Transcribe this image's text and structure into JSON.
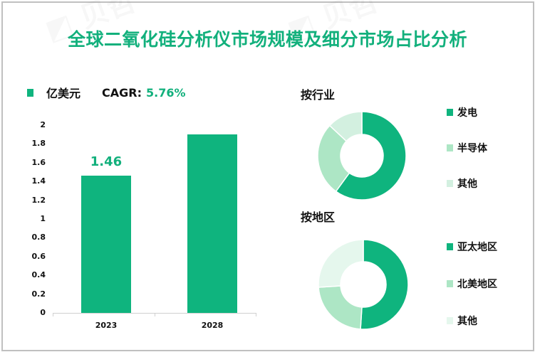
{
  "title": "全球二氧化硅分析仪市场规模及细分市场占比分析",
  "bar_section": {
    "unit_label": "亿美元",
    "cagr_label": "CAGR:",
    "cagr_value": "5.76%",
    "y_ticks": [
      "2",
      "1.8",
      "1.6",
      "1.4",
      "1.2",
      "1",
      "0.8",
      "0.6",
      "0.4",
      "0.2",
      "0"
    ],
    "bars": [
      {
        "year": "2023",
        "value": 1.46,
        "label": "1.46"
      },
      {
        "year": "2028",
        "value": 1.9,
        "label": ""
      }
    ]
  },
  "industry_section": {
    "title": "按行业",
    "items": [
      {
        "label": "发电",
        "share": 60,
        "color": "#0fb47e"
      },
      {
        "label": "半导体",
        "share": 27,
        "color": "#ade6c5"
      },
      {
        "label": "其他",
        "share": 13,
        "color": "#d3f0e0"
      }
    ]
  },
  "region_section": {
    "title": "按地区",
    "items": [
      {
        "label": "亚太地区",
        "share": 51,
        "color": "#0fb47e"
      },
      {
        "label": "北美地区",
        "share": 23,
        "color": "#ade6c5"
      },
      {
        "label": "其他",
        "share": 26,
        "color": "#e5f7ed"
      }
    ]
  },
  "colors": {
    "accent": "#12b07c",
    "bar": "#0fb47e"
  },
  "chart_data": [
    {
      "type": "bar",
      "title": "全球二氧化硅分析仪市场规模",
      "categories": [
        "2023",
        "2028"
      ],
      "values": [
        1.46,
        1.9
      ],
      "data_labels": [
        "1.46",
        ""
      ],
      "ylabel": "亿美元",
      "xlabel": "",
      "ylim": [
        0,
        2
      ],
      "yticks": [
        0,
        0.2,
        0.4,
        0.6,
        0.8,
        1,
        1.2,
        1.4,
        1.6,
        1.8,
        2
      ],
      "annotation": "CAGR: 5.76%",
      "grid": false
    },
    {
      "type": "pie",
      "subtype": "donut",
      "title": "按行业",
      "categories": [
        "发电",
        "半导体",
        "其他"
      ],
      "values": [
        60,
        27,
        13
      ],
      "legend_position": "right"
    },
    {
      "type": "pie",
      "subtype": "donut",
      "title": "按地区",
      "categories": [
        "亚太地区",
        "北美地区",
        "其他"
      ],
      "values": [
        51,
        23,
        26
      ],
      "legend_position": "right"
    }
  ]
}
